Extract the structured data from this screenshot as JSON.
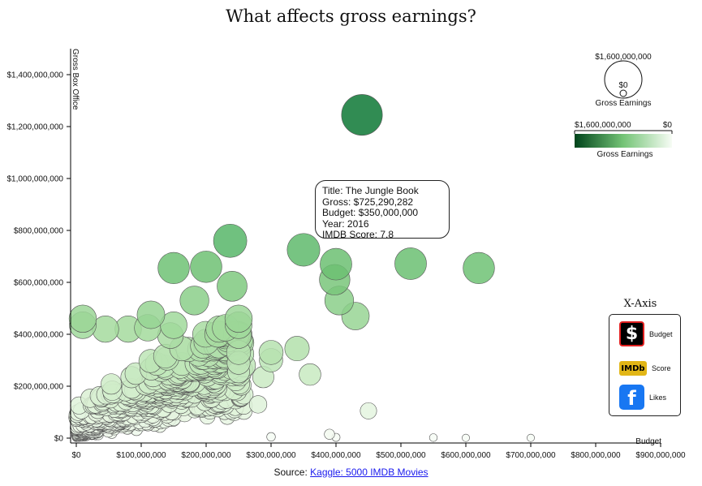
{
  "chart_data": {
    "type": "scatter",
    "title": "What affects gross earnings?",
    "xlabel": "Budget",
    "ylabel": "Gross Box Office",
    "xlim": [
      0,
      900000000
    ],
    "ylim": [
      0,
      1500000000
    ],
    "x_ticks": [
      "$0",
      "$100,000,000",
      "$200,000,000",
      "$300,000,000",
      "$400,000,000",
      "$500,000,000",
      "$600,000,000",
      "$700,000,000",
      "$800,000,000",
      "$900,000,000"
    ],
    "y_ticks": [
      "$0",
      "$200,000,000",
      "$400,000,000",
      "$600,000,000",
      "$800,000,000",
      "$1,000,000,000",
      "$1,200,000,000",
      "$1,400,000,000"
    ],
    "size_encoding": "Gross Earnings",
    "color_encoding": "Gross Earnings",
    "highlighted_points": [
      {
        "budget": 440000000,
        "gross": 1245000000
      },
      {
        "budget": 237000000,
        "gross": 760000000
      },
      {
        "budget": 350000000,
        "gross": 725290282,
        "selected": true
      },
      {
        "budget": 150000000,
        "gross": 655000000
      },
      {
        "budget": 200000000,
        "gross": 660000000
      },
      {
        "budget": 240000000,
        "gross": 585000000
      },
      {
        "budget": 182000000,
        "gross": 530000000
      },
      {
        "budget": 400000000,
        "gross": 670000000
      },
      {
        "budget": 398000000,
        "gross": 610000000
      },
      {
        "budget": 405000000,
        "gross": 530000000
      },
      {
        "budget": 430000000,
        "gross": 470000000
      },
      {
        "budget": 515000000,
        "gross": 672000000
      },
      {
        "budget": 620000000,
        "gross": 655000000
      },
      {
        "budget": 340000000,
        "gross": 345000000
      },
      {
        "budget": 360000000,
        "gross": 245000000
      },
      {
        "budget": 450000000,
        "gross": 105000000
      },
      {
        "budget": 300000000,
        "gross": 330000000
      },
      {
        "budget": 300000000,
        "gross": 300000000
      },
      {
        "budget": 288000000,
        "gross": 235000000
      },
      {
        "budget": 280000000,
        "gross": 130000000
      },
      {
        "budget": 250000000,
        "gross": 460000000
      },
      {
        "budget": 250000000,
        "gross": 435000000
      },
      {
        "budget": 250000000,
        "gross": 395000000
      },
      {
        "budget": 250000000,
        "gross": 330000000
      },
      {
        "budget": 250000000,
        "gross": 290000000
      },
      {
        "budget": 250000000,
        "gross": 255000000
      },
      {
        "budget": 115000000,
        "gross": 475000000
      },
      {
        "budget": 150000000,
        "gross": 435000000
      },
      {
        "budget": 220000000,
        "gross": 420000000
      },
      {
        "budget": 230000000,
        "gross": 425000000
      },
      {
        "budget": 80000000,
        "gross": 420000000
      },
      {
        "budget": 110000000,
        "gross": 425000000
      },
      {
        "budget": 145000000,
        "gross": 395000000
      },
      {
        "budget": 10000000,
        "gross": 460000000
      },
      {
        "budget": 10000000,
        "gross": 435000000
      },
      {
        "budget": 45000000,
        "gross": 420000000
      },
      {
        "budget": 300000000,
        "gross": 5000000
      },
      {
        "budget": 390000000,
        "gross": 15000000
      },
      {
        "budget": 400000000,
        "gross": 3000000
      },
      {
        "budget": 550000000,
        "gross": 2000000
      },
      {
        "budget": 600000000,
        "gross": 1000000
      },
      {
        "budget": 700000000,
        "gross": 1000000
      }
    ],
    "cluster_note_range": {
      "budget_max": 260000000,
      "gross_max": 400000000
    }
  },
  "tooltip": {
    "title": "Title: The Jungle Book",
    "gross": "Gross: $725,290,282",
    "budget": "Budget: $350,000,000",
    "year": "Year: 2016",
    "imdb": "IMDB Score: 7.8"
  },
  "size_legend": {
    "max_label": "$1,600,000,000",
    "min_label": "$0",
    "title": "Gross Earnings"
  },
  "color_legend": {
    "left_label": "$1,600,000,000",
    "right_label": "$0",
    "title": "Gross Earnings",
    "dark_color": "#00441b",
    "light_color": "#f7fcf5"
  },
  "xaxis_panel": {
    "title": "X-Axis",
    "budget_label": "Budget",
    "budget_icon": "$",
    "score_label": "Score",
    "score_icon": "IMDb",
    "likes_label": "Likes",
    "likes_icon": "f"
  },
  "source": {
    "prefix": "Source: ",
    "link_text": "Kaggle: 5000 IMDB Movies"
  },
  "colors": {
    "selected_stroke": "#cc2200",
    "axis": "#000000"
  }
}
